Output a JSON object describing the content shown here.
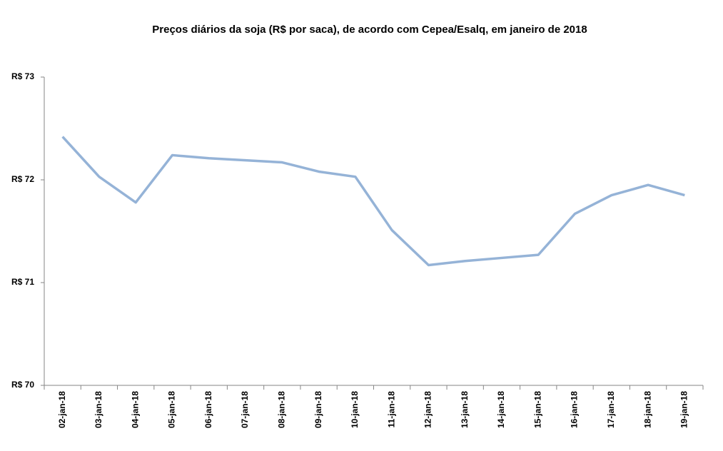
{
  "chart_data": {
    "type": "line",
    "title": "Preços diários da soja (R$ por saca), de acordo com Cepea/Esalq, em janeiro de 2018",
    "categories": [
      "02-jan-18",
      "03-jan-18",
      "04-jan-18",
      "05-jan-18",
      "06-jan-18",
      "07-jan-18",
      "08-jan-18",
      "09-jan-18",
      "10-jan-18",
      "11-jan-18",
      "12-jan-18",
      "13-jan-18",
      "14-jan-18",
      "15-jan-18",
      "16-jan-18",
      "17-jan-18",
      "18-jan-18",
      "19-jan-18"
    ],
    "series": [
      {
        "name": "Soja",
        "color": "#95b3d7",
        "values": [
          72.42,
          72.03,
          71.78,
          72.24,
          72.21,
          72.19,
          72.17,
          72.08,
          72.03,
          71.51,
          71.17,
          71.21,
          71.24,
          71.27,
          71.67,
          71.85,
          71.95,
          71.85
        ]
      }
    ],
    "ylim": [
      70,
      73
    ],
    "yticks": [
      {
        "value": 70,
        "label": "R$ 70"
      },
      {
        "value": 71,
        "label": "R$ 71"
      },
      {
        "value": 72,
        "label": "R$ 72"
      },
      {
        "value": 73,
        "label": "R$ 73"
      }
    ],
    "grid": false
  }
}
